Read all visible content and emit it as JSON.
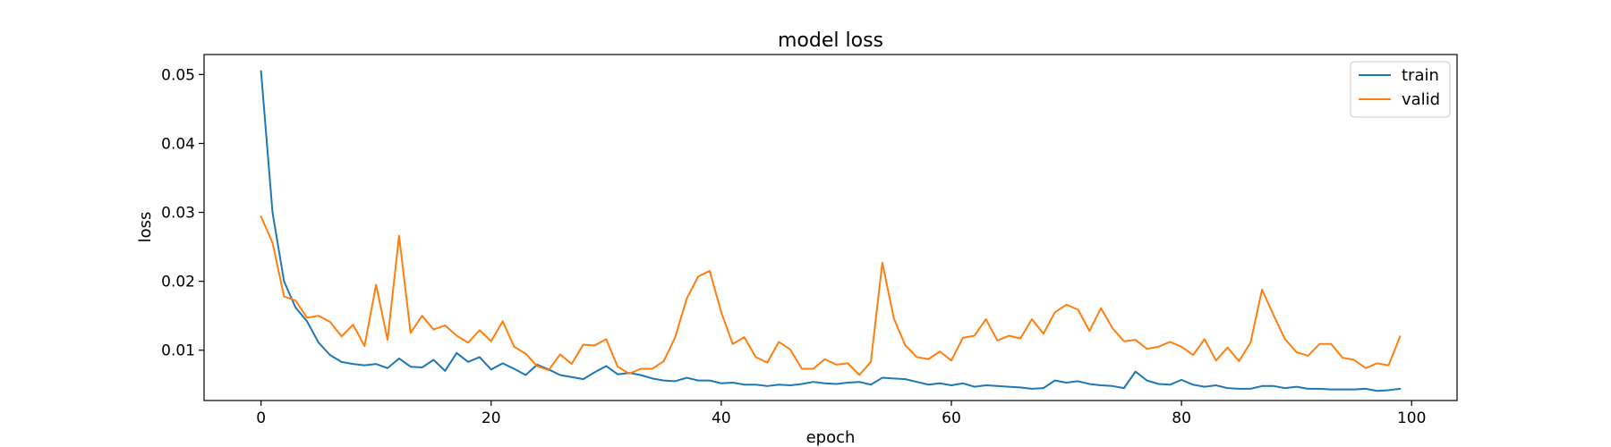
{
  "chart_data": {
    "type": "line",
    "title": "model loss",
    "xlabel": "epoch",
    "ylabel": "loss",
    "xlim": [
      -4.95,
      103.95
    ],
    "ylim": [
      0.0027,
      0.0529
    ],
    "xticks": [
      0,
      20,
      40,
      60,
      80,
      100
    ],
    "xtick_labels": [
      "0",
      "20",
      "40",
      "60",
      "80",
      "100"
    ],
    "yticks": [
      0.01,
      0.02,
      0.03,
      0.04,
      0.05
    ],
    "ytick_labels": [
      "0.01",
      "0.02",
      "0.03",
      "0.04",
      "0.05"
    ],
    "grid": false,
    "legend_position": "top-right",
    "series": [
      {
        "name": "train",
        "color": "#1f77b4",
        "values": [
          0.0505,
          0.03,
          0.02,
          0.0162,
          0.0142,
          0.0111,
          0.0093,
          0.0083,
          0.008,
          0.0078,
          0.008,
          0.0074,
          0.0088,
          0.0076,
          0.0075,
          0.0086,
          0.007,
          0.0096,
          0.0083,
          0.009,
          0.0072,
          0.0081,
          0.0073,
          0.0064,
          0.0079,
          0.0072,
          0.0064,
          0.0061,
          0.0058,
          0.0068,
          0.0077,
          0.0065,
          0.0067,
          0.0064,
          0.0059,
          0.0056,
          0.0055,
          0.006,
          0.0056,
          0.0056,
          0.0052,
          0.0053,
          0.005,
          0.005,
          0.0048,
          0.005,
          0.0049,
          0.0051,
          0.0054,
          0.0052,
          0.0051,
          0.0053,
          0.0054,
          0.005,
          0.006,
          0.0059,
          0.0058,
          0.0054,
          0.005,
          0.0052,
          0.0049,
          0.0052,
          0.0047,
          0.0049,
          0.0048,
          0.0047,
          0.0046,
          0.0044,
          0.0045,
          0.0056,
          0.0053,
          0.0055,
          0.0051,
          0.0049,
          0.0048,
          0.0045,
          0.0069,
          0.0056,
          0.0051,
          0.005,
          0.0057,
          0.005,
          0.0047,
          0.0049,
          0.0045,
          0.0044,
          0.0044,
          0.0048,
          0.0048,
          0.0045,
          0.0047,
          0.0044,
          0.0044,
          0.0043,
          0.0043,
          0.0043,
          0.0044,
          0.0041,
          0.0042,
          0.0044
        ]
      },
      {
        "name": "valid",
        "color": "#ff7f0e",
        "values": [
          0.0294,
          0.0256,
          0.0178,
          0.0172,
          0.0147,
          0.015,
          0.0141,
          0.012,
          0.0137,
          0.0106,
          0.0195,
          0.0115,
          0.0266,
          0.0125,
          0.015,
          0.013,
          0.0136,
          0.0121,
          0.0111,
          0.0129,
          0.0113,
          0.0142,
          0.0105,
          0.0095,
          0.0077,
          0.0071,
          0.0094,
          0.008,
          0.0108,
          0.0107,
          0.0116,
          0.0076,
          0.0066,
          0.0073,
          0.0073,
          0.0084,
          0.0119,
          0.0175,
          0.0207,
          0.0215,
          0.0155,
          0.0109,
          0.0119,
          0.009,
          0.0082,
          0.0112,
          0.0101,
          0.0073,
          0.0073,
          0.0087,
          0.0079,
          0.0081,
          0.0064,
          0.0083,
          0.0227,
          0.0146,
          0.0107,
          0.009,
          0.0087,
          0.0098,
          0.0085,
          0.0118,
          0.0121,
          0.0145,
          0.0114,
          0.0121,
          0.0117,
          0.0145,
          0.0124,
          0.0155,
          0.0166,
          0.0159,
          0.0128,
          0.0161,
          0.0132,
          0.0113,
          0.0115,
          0.0102,
          0.0105,
          0.0112,
          0.0105,
          0.0093,
          0.0116,
          0.0085,
          0.0104,
          0.0084,
          0.0111,
          0.0188,
          0.0151,
          0.0116,
          0.0097,
          0.0092,
          0.0109,
          0.0109,
          0.0089,
          0.0086,
          0.0074,
          0.0081,
          0.0078,
          0.012
        ]
      }
    ]
  }
}
